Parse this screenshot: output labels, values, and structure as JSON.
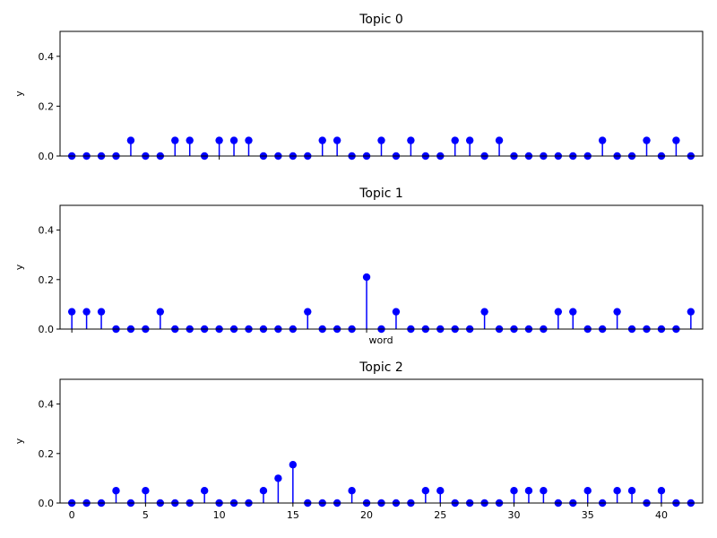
{
  "chart_data": [
    {
      "type": "stem",
      "title": "Topic 0",
      "xlabel": "",
      "ylabel": "y",
      "x": [
        0,
        1,
        2,
        3,
        4,
        5,
        6,
        7,
        8,
        9,
        10,
        11,
        12,
        13,
        14,
        15,
        16,
        17,
        18,
        19,
        20,
        21,
        22,
        23,
        24,
        25,
        26,
        27,
        28,
        29,
        30,
        31,
        32,
        33,
        34,
        35,
        36,
        37,
        38,
        39,
        40,
        41,
        42
      ],
      "values": [
        0,
        0,
        0,
        0,
        0.0625,
        0,
        0,
        0.0625,
        0.0625,
        0,
        0.0625,
        0.0625,
        0.0625,
        0,
        0,
        0,
        0,
        0.0625,
        0.0625,
        0,
        0,
        0.0625,
        0,
        0.0625,
        0,
        0,
        0.0625,
        0.0625,
        0,
        0.0625,
        0,
        0,
        0,
        0,
        0,
        0,
        0.0625,
        0,
        0,
        0.0625,
        0,
        0.0625,
        0
      ],
      "xlim": [
        -0.8,
        42.8
      ],
      "ylim": [
        0,
        0.5
      ],
      "yticks": [
        "0.0",
        "0.2",
        "0.4"
      ],
      "xticks": [
        "0",
        "5",
        "10",
        "15",
        "20",
        "25",
        "30",
        "35",
        "40"
      ],
      "color": "#0000ff",
      "show_xtick_labels": false
    },
    {
      "type": "stem",
      "title": "Topic 1",
      "xlabel": "word",
      "ylabel": "y",
      "x": [
        0,
        1,
        2,
        3,
        4,
        5,
        6,
        7,
        8,
        9,
        10,
        11,
        12,
        13,
        14,
        15,
        16,
        17,
        18,
        19,
        20,
        21,
        22,
        23,
        24,
        25,
        26,
        27,
        28,
        29,
        30,
        31,
        32,
        33,
        34,
        35,
        36,
        37,
        38,
        39,
        40,
        41,
        42
      ],
      "values": [
        0.07,
        0.07,
        0.07,
        0,
        0,
        0,
        0.07,
        0,
        0,
        0,
        0,
        0,
        0,
        0,
        0,
        0,
        0.07,
        0,
        0,
        0,
        0.21,
        0,
        0.07,
        0,
        0,
        0,
        0,
        0,
        0.07,
        0,
        0,
        0,
        0,
        0.07,
        0.07,
        0,
        0,
        0.07,
        0,
        0,
        0,
        0,
        0.07
      ],
      "xlim": [
        -0.8,
        42.8
      ],
      "ylim": [
        0,
        0.5
      ],
      "yticks": [
        "0.0",
        "0.2",
        "0.4"
      ],
      "xticks": [
        "0",
        "5",
        "10",
        "15",
        "20",
        "25",
        "30",
        "35",
        "40"
      ],
      "color": "#0000ff",
      "show_xtick_labels": false
    },
    {
      "type": "stem",
      "title": "Topic 2",
      "xlabel": "",
      "ylabel": "y",
      "x": [
        0,
        1,
        2,
        3,
        4,
        5,
        6,
        7,
        8,
        9,
        10,
        11,
        12,
        13,
        14,
        15,
        16,
        17,
        18,
        19,
        20,
        21,
        22,
        23,
        24,
        25,
        26,
        27,
        28,
        29,
        30,
        31,
        32,
        33,
        34,
        35,
        36,
        37,
        38,
        39,
        40,
        41,
        42
      ],
      "values": [
        0,
        0,
        0,
        0.05,
        0,
        0.05,
        0,
        0,
        0,
        0.05,
        0,
        0,
        0,
        0.05,
        0.1,
        0.155,
        0,
        0,
        0,
        0.05,
        0,
        0,
        0,
        0,
        0.05,
        0.05,
        0,
        0,
        0,
        0,
        0.05,
        0.05,
        0.05,
        0,
        0,
        0.05,
        0,
        0.05,
        0.05,
        0,
        0.05,
        0,
        0
      ],
      "xlim": [
        -0.8,
        42.8
      ],
      "ylim": [
        0,
        0.5
      ],
      "yticks": [
        "0.0",
        "0.2",
        "0.4"
      ],
      "xticks": [
        "0",
        "5",
        "10",
        "15",
        "20",
        "25",
        "30",
        "35",
        "40"
      ],
      "color": "#0000ff",
      "show_xtick_labels": true
    }
  ]
}
